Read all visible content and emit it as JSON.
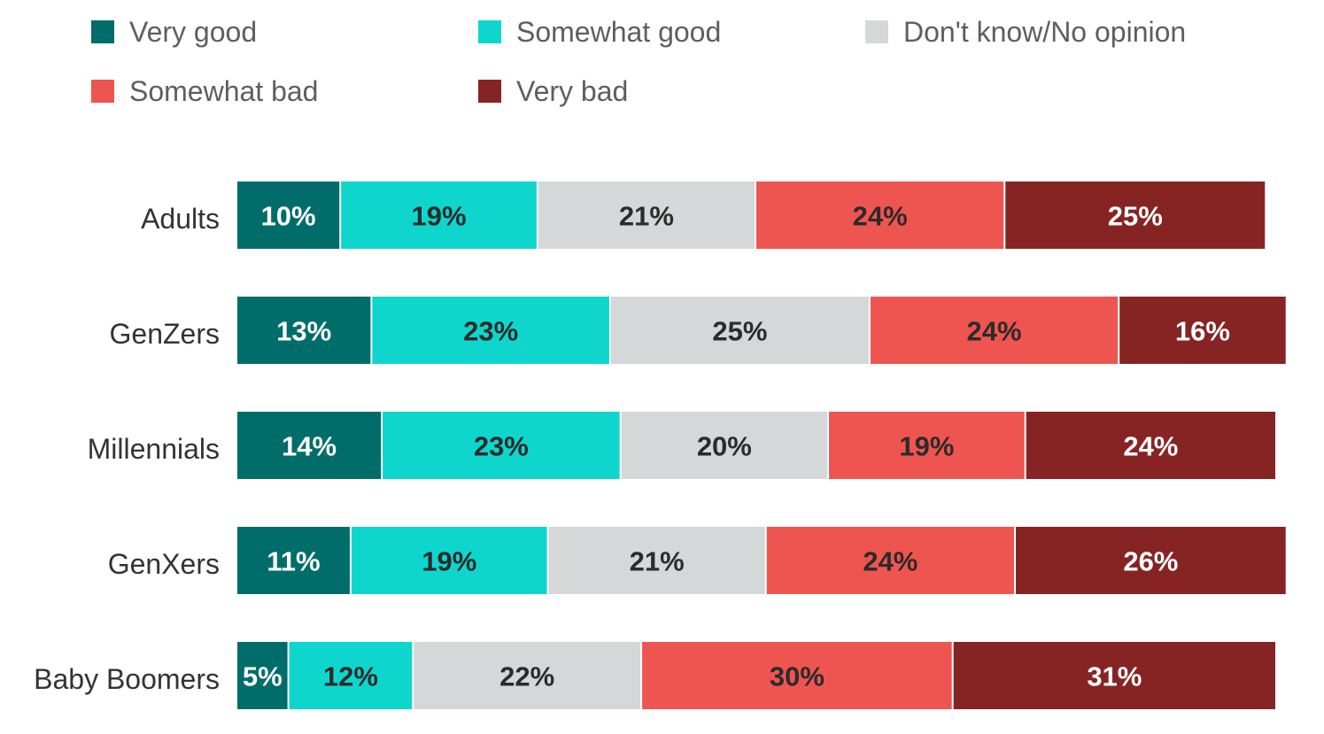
{
  "chart_data": {
    "type": "bar",
    "orientation": "horizontal",
    "stacked": true,
    "normalized_to": 100,
    "legend_position": "top",
    "grid": false,
    "categories": [
      "Adults",
      "GenZers",
      "Millennials",
      "GenXers",
      "Baby Boomers"
    ],
    "series": [
      {
        "name": "Very good",
        "color": "#006d6a",
        "label_color": "#ffffff",
        "values": [
          10,
          13,
          14,
          11,
          5
        ]
      },
      {
        "name": "Somewhat good",
        "color": "#0fd6cc",
        "label_color": "#2b2b2b",
        "values": [
          19,
          23,
          23,
          19,
          12
        ]
      },
      {
        "name": "Don't know/No opinion",
        "color": "#d5d8d8",
        "label_color": "#2b2b2b",
        "values": [
          21,
          25,
          20,
          21,
          22
        ]
      },
      {
        "name": "Somewhat bad",
        "color": "#ef5550",
        "label_color": "#2b2b2b",
        "values": [
          24,
          24,
          19,
          24,
          30
        ]
      },
      {
        "name": "Very bad",
        "color": "#862424",
        "label_color": "#ffffff",
        "values": [
          25,
          16,
          24,
          26,
          31
        ]
      }
    ],
    "data_labels": [
      [
        "10%",
        "19%",
        "21%",
        "24%",
        "25%"
      ],
      [
        "13%",
        "23%",
        "25%",
        "24%",
        "16%"
      ],
      [
        "14%",
        "23%",
        "20%",
        "19%",
        "24%"
      ],
      [
        "11%",
        "19%",
        "21%",
        "24%",
        "26%"
      ],
      [
        "5%",
        "12%",
        "22%",
        "30%",
        "31%"
      ]
    ]
  }
}
